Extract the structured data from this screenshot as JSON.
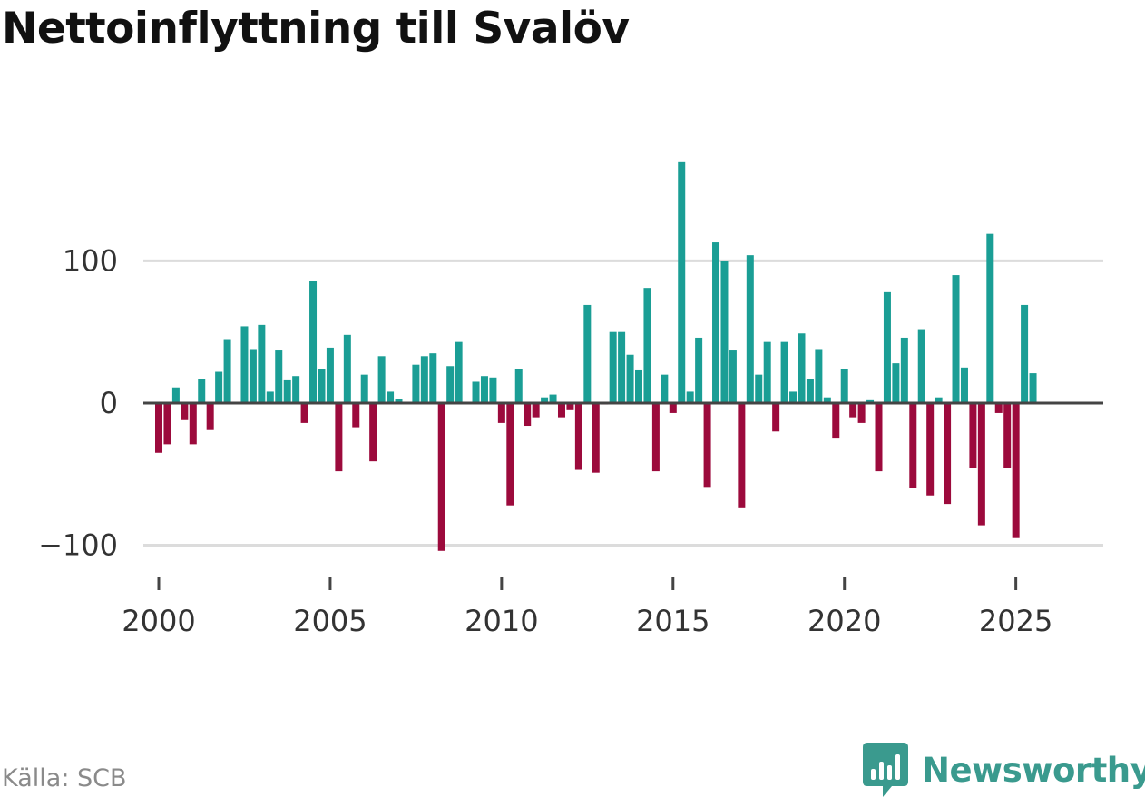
{
  "chart_data": {
    "type": "bar",
    "title": "Nettoinflyttning till Svalöv",
    "xlabel": "",
    "ylabel": "",
    "x_ticks": [
      2000,
      2005,
      2010,
      2015,
      2020,
      2025
    ],
    "y_ticks": [
      100,
      0,
      -100
    ],
    "y_tick_labels": [
      "100",
      "0",
      "−100"
    ],
    "xlim": [
      1999.55,
      2027.55
    ],
    "ylim": [
      -115,
      175
    ],
    "grid": true,
    "legend": "none",
    "positive_color": "#1a9e95",
    "negative_color": "#9c0a3c",
    "series": [
      {
        "name": "Nettoinflyttning",
        "x": [
          2000.0,
          2000.25,
          2000.5,
          2000.75,
          2001.0,
          2001.25,
          2001.5,
          2001.75,
          2002.0,
          2002.25,
          2002.5,
          2002.75,
          2003.0,
          2003.25,
          2003.5,
          2003.75,
          2004.0,
          2004.25,
          2004.5,
          2004.75,
          2005.0,
          2005.25,
          2005.5,
          2005.75,
          2006.0,
          2006.25,
          2006.5,
          2006.75,
          2007.0,
          2007.25,
          2007.5,
          2007.75,
          2008.0,
          2008.25,
          2008.5,
          2008.75,
          2009.0,
          2009.25,
          2009.5,
          2009.75,
          2010.0,
          2010.25,
          2010.5,
          2010.75,
          2011.0,
          2011.25,
          2011.5,
          2011.75,
          2012.0,
          2012.25,
          2012.5,
          2012.75,
          2013.0,
          2013.25,
          2013.5,
          2013.75,
          2014.0,
          2014.25,
          2014.5,
          2014.75,
          2015.0,
          2015.25,
          2015.5,
          2015.75,
          2016.0,
          2016.25,
          2016.5,
          2016.75,
          2017.0,
          2017.25,
          2017.5,
          2017.75,
          2018.0,
          2018.25,
          2018.5,
          2018.75,
          2019.0,
          2019.25,
          2019.5,
          2019.75,
          2020.0,
          2020.25,
          2020.5,
          2020.75,
          2021.0,
          2021.25,
          2021.5,
          2021.75,
          2022.0,
          2022.25,
          2022.5,
          2022.75,
          2023.0,
          2023.25,
          2023.5,
          2023.75,
          2024.0,
          2024.25,
          2024.5,
          2024.75,
          2025.0,
          2025.25,
          2025.5,
          2025.75
        ],
        "values": [
          -35,
          -29,
          11,
          -12,
          -29,
          17,
          -19,
          22,
          45,
          0,
          54,
          38,
          55,
          8,
          37,
          16,
          19,
          -14,
          86,
          24,
          39,
          -48,
          48,
          -17,
          20,
          -41,
          33,
          8,
          3,
          0,
          27,
          33,
          35,
          -104,
          26,
          43,
          0,
          15,
          19,
          18,
          -14,
          -72,
          24,
          -16,
          -10,
          4,
          6,
          -10,
          -5,
          -47,
          69,
          -49,
          -1,
          50,
          50,
          34,
          23,
          81,
          -48,
          20,
          -7,
          170,
          8,
          46,
          -59,
          113,
          100,
          37,
          -74,
          104,
          20,
          43,
          -20,
          43,
          8,
          49,
          17,
          38,
          4,
          -25,
          24,
          -10,
          -14,
          2,
          -48,
          78,
          28,
          46,
          -60,
          52,
          -65,
          4,
          -71,
          90,
          25,
          -46,
          -86,
          119,
          -7,
          -46,
          -95,
          69,
          21,
          0
        ]
      }
    ]
  },
  "footer": {
    "source": "Källa: SCB",
    "brand": "Newsworthy"
  },
  "colors": {
    "brand": "#3a9a8e"
  }
}
